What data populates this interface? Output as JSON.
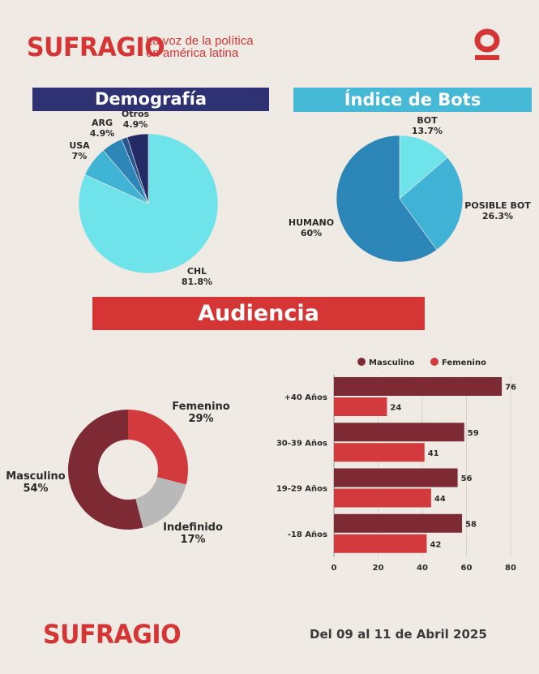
{
  "header": {
    "brand": "SUFRAGIO",
    "tagline_line1": "La voz de la política",
    "tagline_line2": "en américa latina",
    "badge_icon": "sufragio-o-icon"
  },
  "footer": {
    "brand": "SUFRAGIO",
    "date_range": "Del 09 al 11 de Abril 2025"
  },
  "colors": {
    "red": "#d63535",
    "navy": "#2e3272",
    "cyan": "#45b9d6",
    "maroon": "#7d2a35"
  },
  "chart_data": [
    {
      "id": "demografia",
      "type": "pie",
      "title": "Demografía",
      "slices": [
        {
          "label": "CHL",
          "value": 81.8,
          "value_label": "81.8%",
          "color": "#6ee3ea"
        },
        {
          "label": "USA",
          "value": 7,
          "value_label": "7%",
          "color": "#40b4d4"
        },
        {
          "label": "ARG",
          "value": 4.9,
          "value_label": "4.9%",
          "color": "#2c86b8"
        },
        {
          "label": "",
          "value": 1.4,
          "value_label": "",
          "color": "#27568e"
        },
        {
          "label": "Otros",
          "value": 4.9,
          "value_label": "4.9%",
          "color": "#232a66"
        }
      ]
    },
    {
      "id": "indice-bots",
      "type": "pie",
      "title": "Índice de Bots",
      "slices": [
        {
          "label": "BOT",
          "value": 13.7,
          "value_label": "13.7%",
          "color": "#6ee3ea"
        },
        {
          "label": "POSIBLE BOT",
          "value": 26.3,
          "value_label": "26.3%",
          "color": "#3fb2d5"
        },
        {
          "label": "HUMANO",
          "value": 60,
          "value_label": "60%",
          "color": "#2c86b8"
        }
      ]
    },
    {
      "id": "audiencia-genero",
      "type": "pie",
      "title": "Audiencia",
      "slices": [
        {
          "label": "Femenino",
          "value": 29,
          "value_label": "29%",
          "color": "#d23a3d"
        },
        {
          "label": "Indefinido",
          "value": 17,
          "value_label": "17%",
          "color": "#b9b9b9"
        },
        {
          "label": "Masculino",
          "value": 54,
          "value_label": "54%",
          "color": "#7d2a35"
        }
      ]
    },
    {
      "id": "audiencia-edad",
      "type": "bar",
      "orientation": "horizontal",
      "categories": [
        "+40 Años",
        "30-39 Años",
        "19-29 Años",
        "-18 Años"
      ],
      "series": [
        {
          "name": "Masculino",
          "values": [
            76,
            59,
            56,
            58
          ],
          "color": "#7d2a35"
        },
        {
          "name": "Femenino",
          "values": [
            24,
            41,
            44,
            42
          ],
          "color": "#d23a3d"
        }
      ],
      "xlim": [
        0,
        80
      ],
      "xticks": [
        0,
        20,
        40,
        60,
        80
      ],
      "legend": "top",
      "grid": true
    }
  ]
}
